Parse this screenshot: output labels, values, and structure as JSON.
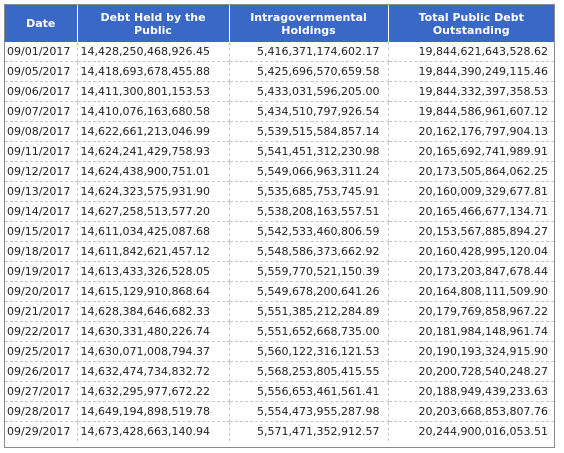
{
  "headers": {
    "date": "Date",
    "public": "Debt Held by the Public",
    "intragov": "Intragovernmental Holdings",
    "total": "Total Public Debt Outstanding"
  },
  "rows": [
    [
      "09/01/2017",
      "14,428,250,468,926.45",
      "5,416,371,174,602.17",
      "19,844,621,643,528.62"
    ],
    [
      "09/05/2017",
      "14,418,693,678,455.88",
      "5,425,696,570,659.58",
      "19,844,390,249,115.46"
    ],
    [
      "09/06/2017",
      "14,411,300,801,153.53",
      "5,433,031,596,205.00",
      "19,844,332,397,358.53"
    ],
    [
      "09/07/2017",
      "14,410,076,163,680.58",
      "5,434,510,797,926.54",
      "19,844,586,961,607.12"
    ],
    [
      "09/08/2017",
      "14,622,661,213,046.99",
      "5,539,515,584,857.14",
      "20,162,176,797,904.13"
    ],
    [
      "09/11/2017",
      "14,624,241,429,758.93",
      "5,541,451,312,230.98",
      "20,165,692,741,989.91"
    ],
    [
      "09/12/2017",
      "14,624,438,900,751.01",
      "5,549,066,963,311.24",
      "20,173,505,864,062.25"
    ],
    [
      "09/13/2017",
      "14,624,323,575,931.90",
      "5,535,685,753,745.91",
      "20,160,009,329,677.81"
    ],
    [
      "09/14/2017",
      "14,627,258,513,577.20",
      "5,538,208,163,557.51",
      "20,165,466,677,134.71"
    ],
    [
      "09/15/2017",
      "14,611,034,425,087.68",
      "5,542,533,460,806.59",
      "20,153,567,885,894.27"
    ],
    [
      "09/18/2017",
      "14,611,842,621,457.12",
      "5,548,586,373,662.92",
      "20,160,428,995,120.04"
    ],
    [
      "09/19/2017",
      "14,613,433,326,528.05",
      "5,559,770,521,150.39",
      "20,173,203,847,678.44"
    ],
    [
      "09/20/2017",
      "14,615,129,910,868.64",
      "5,549,678,200,641.26",
      "20,164,808,111,509.90"
    ],
    [
      "09/21/2017",
      "14,628,384,646,682.33",
      "5,551,385,212,284.89",
      "20,179,769,858,967.22"
    ],
    [
      "09/22/2017",
      "14,630,331,480,226.74",
      "5,551,652,668,735.00",
      "20,181,984,148,961.74"
    ],
    [
      "09/25/2017",
      "14,630,071,008,794.37",
      "5,560,122,316,121.53",
      "20,190,193,324,915.90"
    ],
    [
      "09/26/2017",
      "14,632,474,734,832.72",
      "5,568,253,805,415.55",
      "20,200,728,540,248.27"
    ],
    [
      "09/27/2017",
      "14,632,295,977,672.22",
      "5,556,653,461,561.41",
      "20,188,949,439,233.63"
    ],
    [
      "09/28/2017",
      "14,649,194,898,519.78",
      "5,554,473,955,287.98",
      "20,203,668,853,807.76"
    ],
    [
      "09/29/2017",
      "14,673,428,663,140.94",
      "5,571,471,352,912.57",
      "20,244,900,016,053.51"
    ]
  ],
  "colors": {
    "header_bg": "#3968c6",
    "header_text": "#ffffff",
    "border": "#8a8a8a"
  }
}
